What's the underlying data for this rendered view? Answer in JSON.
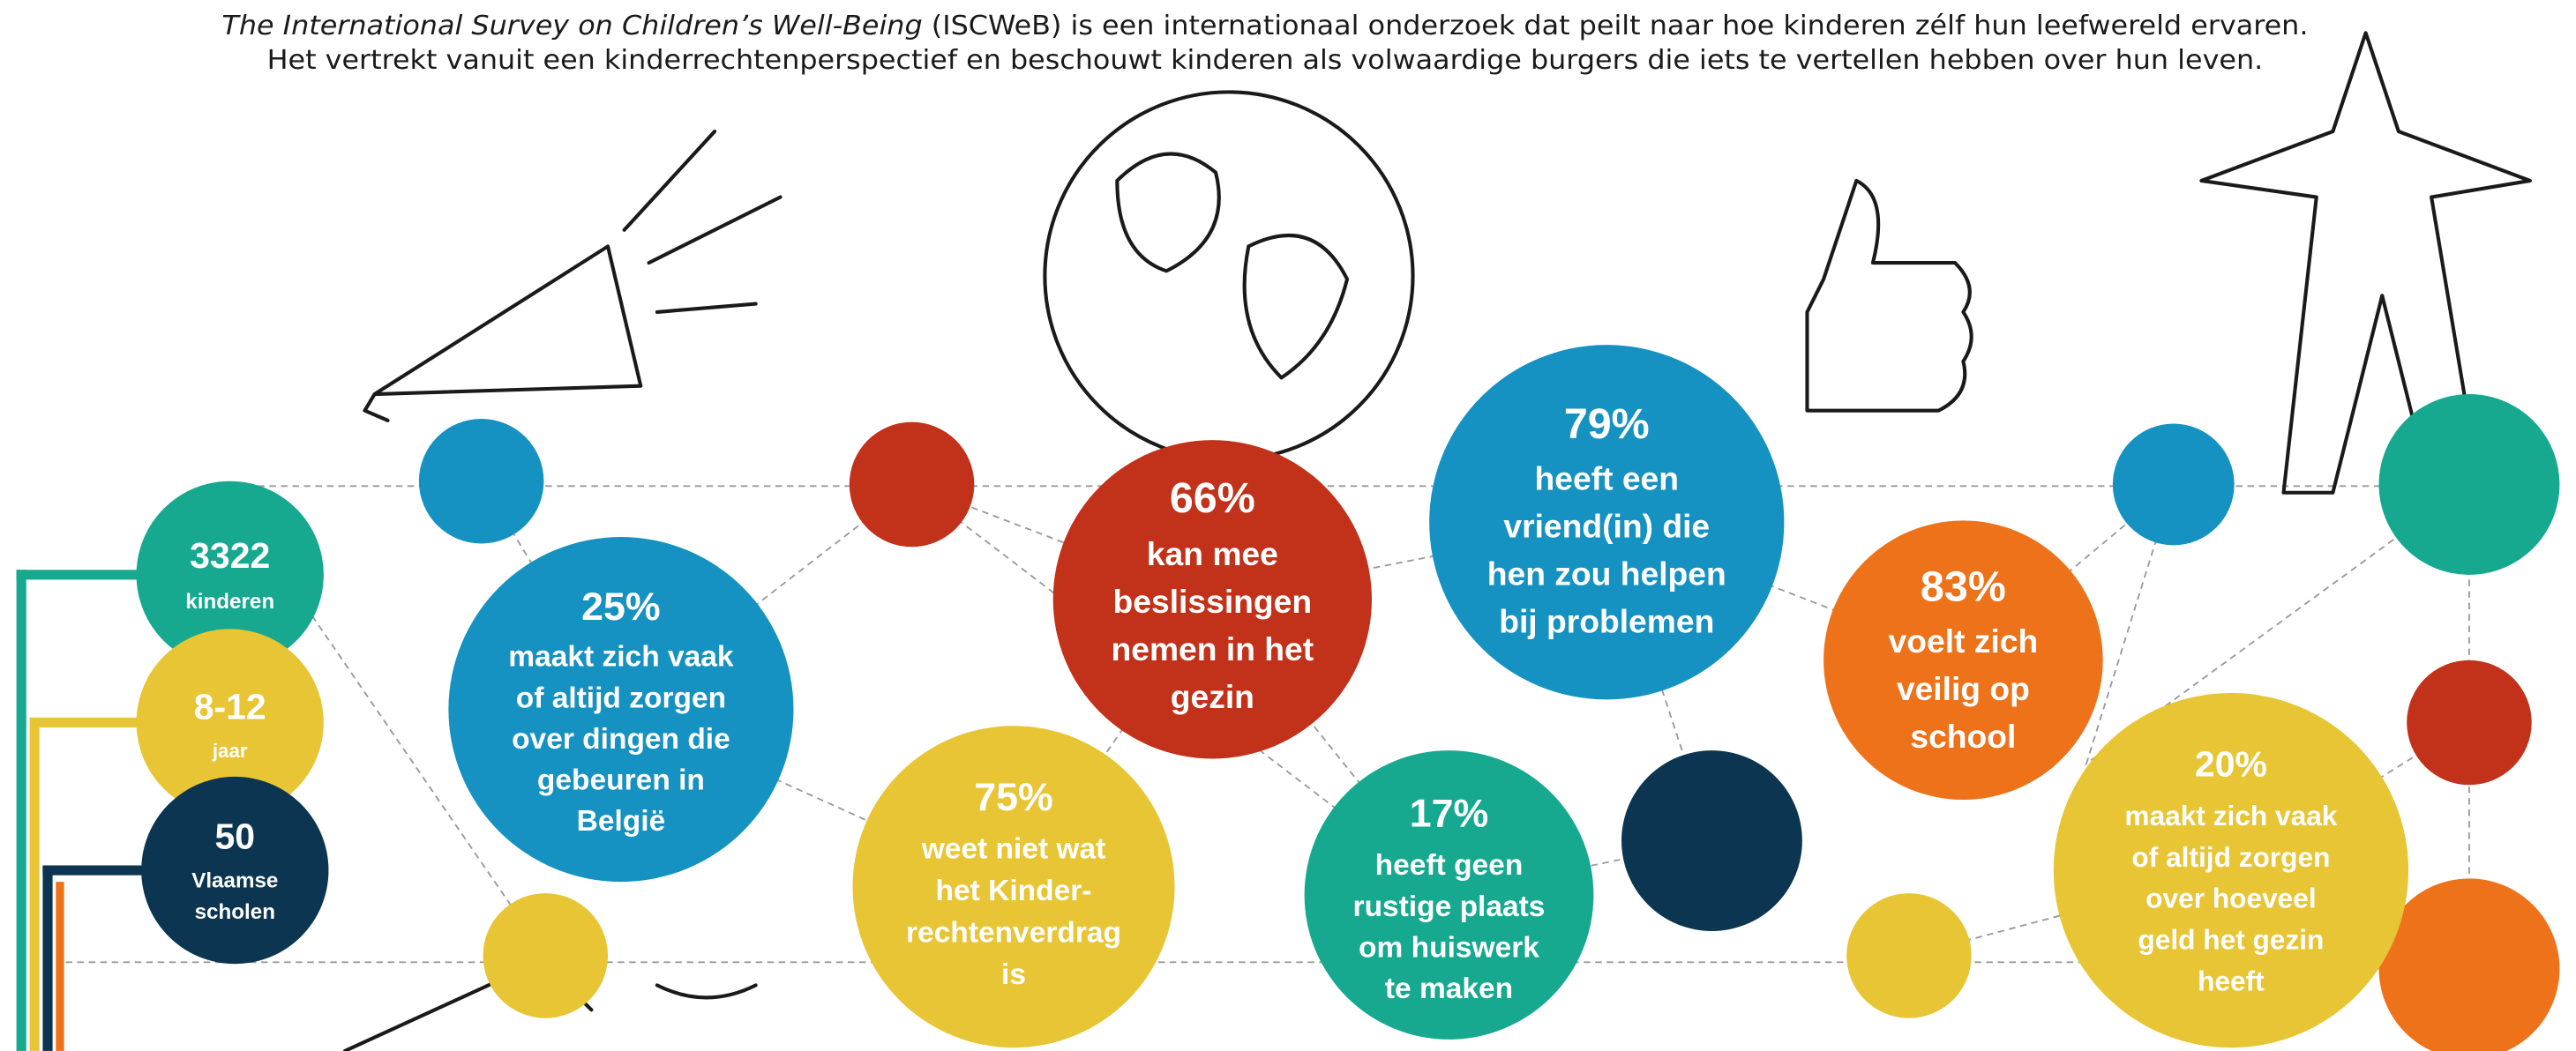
{
  "header": {
    "lines": [
      {
        "italic": "The International Survey on Children’s Well-Being",
        "text": " (ISCWeB) is een internationaal onderzoek dat peilt naar hoe kinderen zélf hun leefwereld ervaren."
      },
      {
        "text": "Het vertrekt vanuit een kinderrechtenperspectief en beschouwt kinderen als volwaardige burgers die iets te vertellen hebben over hun leven."
      }
    ]
  },
  "stats": [
    {
      "value": "3322",
      "lines": [
        "kinderen"
      ]
    },
    {
      "value": "8-12",
      "lines": [
        "jaar"
      ]
    },
    {
      "value": "50",
      "lines": [
        "Vlaamse",
        "scholen"
      ]
    },
    {
      "value": "25%",
      "lines": [
        "maakt zich vaak",
        "of altijd zorgen",
        "over dingen die",
        "gebeuren in",
        "België"
      ]
    },
    {
      "value": "66%",
      "lines": [
        "kan mee",
        "beslissingen",
        "nemen in het",
        "gezin"
      ]
    },
    {
      "value": "75%",
      "lines": [
        "weet niet wat",
        "het Kinder-",
        "rechtenverdrag",
        "is"
      ]
    },
    {
      "value": "79%",
      "lines": [
        "heeft een",
        "vriend(in) die",
        "hen zou helpen",
        "bij problemen"
      ]
    },
    {
      "value": "17%",
      "lines": [
        "heeft geen",
        "rustige plaats",
        "om huiswerk",
        "te maken"
      ]
    },
    {
      "value": "83%",
      "lines": [
        "voelt zich",
        "veilig op",
        "school"
      ]
    },
    {
      "value": "20%",
      "lines": [
        "maakt zich vaak",
        "of altijd zorgen",
        "over hoeveel",
        "geld het gezin",
        "heeft"
      ]
    }
  ]
}
